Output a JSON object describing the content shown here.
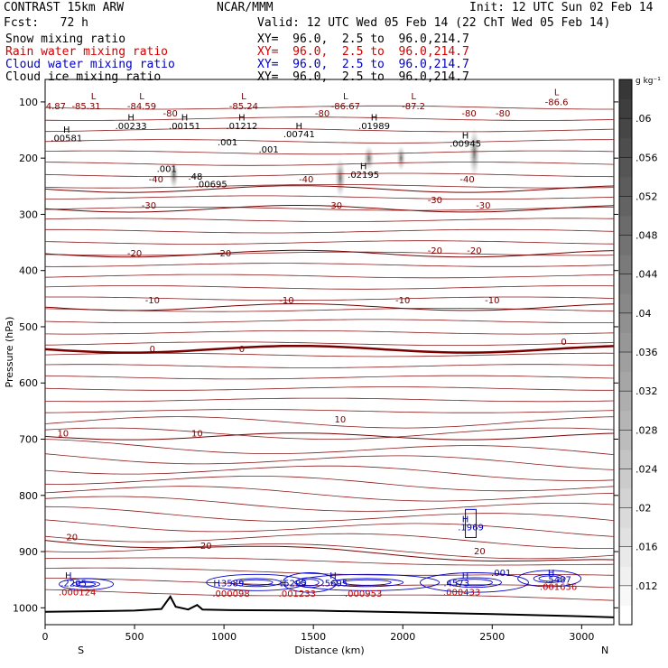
{
  "header": {
    "title_left": "CONTRAST 15km ARW",
    "title_center": "NCAR/MMM",
    "init": "Init: 12 UTC Sun 02 Feb 14",
    "fcst": "Fcst:   72 h",
    "valid": "Valid: 12 UTC Wed 05 Feb 14 (22 ChT Wed 05 Feb 14)",
    "fields": [
      {
        "name": "Snow mixing ratio",
        "xy": "XY=  96.0,  2.5 to  96.0,214.7",
        "color": "#000000"
      },
      {
        "name": "Rain water mixing ratio",
        "xy": "XY=  96.0,  2.5 to  96.0,214.7",
        "color": "#d00000"
      },
      {
        "name": "Cloud water mixing ratio",
        "xy": "XY=  96.0,  2.5 to  96.0,214.7",
        "color": "#0000c8"
      },
      {
        "name": "Cloud ice mixing ratio",
        "xy": "XY=  96.0,  2.5 to  96.0,214.7",
        "color": "#000000"
      }
    ]
  },
  "chart_data": {
    "type": "cross-section",
    "xlabel": "Distance (km)",
    "ylabel": "Pressure (hPa)",
    "xlim": [
      0,
      3180
    ],
    "ylim": [
      1030,
      60
    ],
    "x_ticks": [
      0,
      500,
      1000,
      1500,
      2000,
      2500,
      3000
    ],
    "y_ticks": [
      100,
      200,
      300,
      400,
      500,
      600,
      700,
      800,
      900,
      1000
    ],
    "direction_left": "S",
    "direction_right": "N",
    "colorbar": {
      "unit": "g kg⁻¹",
      "ticks": [
        ".06",
        ".056",
        ".052",
        ".048",
        ".044",
        ".04",
        ".036",
        ".032",
        ".028",
        ".024",
        ".02",
        ".016",
        ".012"
      ],
      "tick_values": [
        0.06,
        0.056,
        0.052,
        0.048,
        0.044,
        0.04,
        0.036,
        0.032,
        0.028,
        0.024,
        0.02,
        0.016,
        0.012
      ],
      "range": [
        0.008,
        0.064
      ]
    },
    "temperature_contours_c": [
      {
        "value": 0,
        "pressure_left": 540,
        "emphasis": true
      },
      {
        "value": -10,
        "pressure_left": 465
      },
      {
        "value": -20,
        "pressure_left": 370
      },
      {
        "value": -30,
        "pressure_left": 290
      },
      {
        "value": -40,
        "pressure_left": 255
      },
      {
        "value": 10,
        "pressure_left": 695
      },
      {
        "value": 20,
        "pressure_left": 880
      }
    ],
    "terrain": {
      "x": [
        0,
        250,
        500,
        650,
        700,
        730,
        800,
        850,
        880,
        1000,
        1500,
        2000,
        2500,
        3000,
        3180
      ],
      "pressure": [
        1007,
        1006,
        1005,
        1002,
        980,
        998,
        1003,
        995,
        1003,
        1004,
        1005,
        1008,
        1011,
        1015,
        1017
      ]
    },
    "labels_temperature": [
      "-85.31",
      "-84.59",
      "-85.24",
      "-86.67",
      "-87.2",
      "-86.6",
      "4.87",
      "-80",
      "-80",
      "-80",
      "-80",
      "-40",
      "-40",
      "-40",
      "-30",
      "-30",
      "-30",
      "-30",
      "-20",
      "-20",
      "-20",
      "-20",
      "-10",
      "-10",
      "-10",
      "-10",
      "0",
      "0",
      "0",
      "10",
      "10",
      "10",
      "20",
      "20",
      "20"
    ],
    "labels_snow": [
      {
        "text": "H",
        "x": 120,
        "p": 155
      },
      {
        "text": ".00581",
        "x": 120,
        "p": 170
      },
      {
        "text": "H",
        "x": 480,
        "p": 133
      },
      {
        "text": ".00233",
        "x": 480,
        "p": 148
      },
      {
        "text": "H",
        "x": 780,
        "p": 133
      },
      {
        "text": ".00151",
        "x": 780,
        "p": 148
      },
      {
        "text": "H",
        "x": 1100,
        "p": 133
      },
      {
        "text": ".01212",
        "x": 1100,
        "p": 148
      },
      {
        "text": "H",
        "x": 1420,
        "p": 148
      },
      {
        "text": ".00741",
        "x": 1420,
        "p": 163
      },
      {
        "text": "H",
        "x": 1840,
        "p": 133
      },
      {
        "text": ".01989",
        "x": 1840,
        "p": 148
      },
      {
        "text": "H",
        "x": 1780,
        "p": 220
      },
      {
        "text": ".02195",
        "x": 1780,
        "p": 235
      },
      {
        "text": "H",
        "x": 2350,
        "p": 165
      },
      {
        "text": ".00945",
        "x": 2350,
        "p": 180
      },
      {
        "text": ".001",
        "x": 680,
        "p": 225
      },
      {
        "text": ".48",
        "x": 840,
        "p": 238
      },
      {
        "text": ".00695",
        "x": 930,
        "p": 252
      },
      {
        "text": ".001",
        "x": 1020,
        "p": 177
      },
      {
        "text": ".001",
        "x": 1250,
        "p": 190
      },
      {
        "text": "L",
        "x": 270,
        "p": 95
      },
      {
        "text": "L",
        "x": 540,
        "p": 95
      },
      {
        "text": "L",
        "x": 1110,
        "p": 95
      },
      {
        "text": "L",
        "x": 1680,
        "p": 95
      },
      {
        "text": "L",
        "x": 2060,
        "p": 95
      },
      {
        "text": "L",
        "x": 2860,
        "p": 88
      }
    ],
    "labels_cloud_water": [
      {
        "text": "H",
        "x": 130,
        "p": 948
      },
      {
        "text": ".2205",
        "x": 160,
        "p": 962
      },
      {
        "text": "H",
        "x": 960,
        "p": 962
      },
      {
        "text": ".3589",
        "x": 1040,
        "p": 962
      },
      {
        "text": "H",
        "x": 1330,
        "p": 962
      },
      {
        "text": ".5295",
        "x": 1390,
        "p": 962
      },
      {
        "text": "H",
        "x": 1610,
        "p": 948
      },
      {
        "text": ".5695",
        "x": 1620,
        "p": 962
      },
      {
        "text": "H",
        "x": 2350,
        "p": 948
      },
      {
        "text": ".4573",
        "x": 2300,
        "p": 962
      },
      {
        "text": ".001",
        "x": 2550,
        "p": 943
      },
      {
        "text": "H",
        "x": 2830,
        "p": 943
      },
      {
        "text": ".5487",
        "x": 2870,
        "p": 955
      },
      {
        "text": "H",
        "x": 2350,
        "p": 848
      },
      {
        "text": ".1969",
        "x": 2380,
        "p": 862
      }
    ],
    "labels_rain": [
      {
        "text": ".000124",
        "x": 180,
        "p": 978
      },
      {
        "text": ".000098",
        "x": 1040,
        "p": 980
      },
      {
        "text": ".001233",
        "x": 1410,
        "p": 980
      },
      {
        "text": ".000953",
        "x": 1780,
        "p": 980
      },
      {
        "text": ".000433",
        "x": 2330,
        "p": 978
      },
      {
        "text": ".001636",
        "x": 2870,
        "p": 968
      }
    ]
  }
}
